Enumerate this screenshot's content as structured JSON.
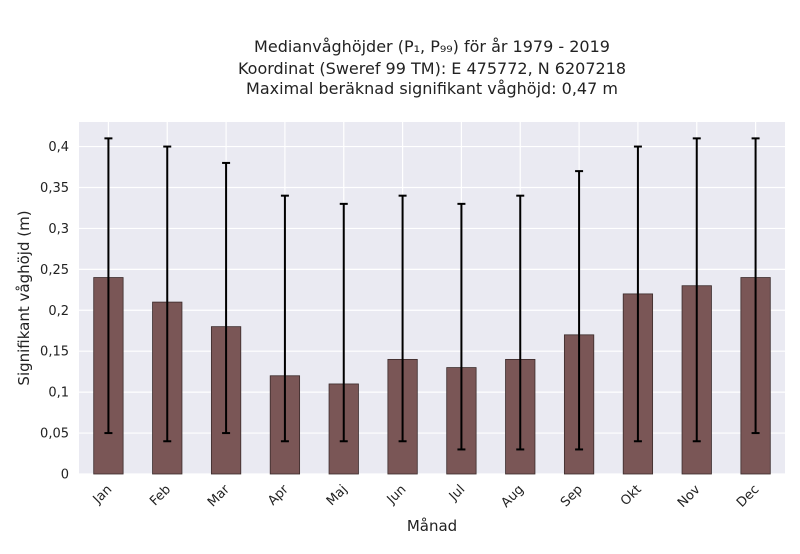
{
  "chart_data": {
    "type": "bar",
    "title_lines": [
      "Medianvåghöjder (P₁, P₉₉) för år 1979 - 2019",
      "Koordinat (Sweref 99 TM): E 475772, N 6207218",
      "Maximal beräknad signifikant våghöjd: 0,47 m"
    ],
    "xlabel": "Månad",
    "ylabel": "Signifikant våghöjd (m)",
    "categories": [
      "Jan",
      "Feb",
      "Mar",
      "Apr",
      "Maj",
      "Jun",
      "Jul",
      "Aug",
      "Sep",
      "Okt",
      "Nov",
      "Dec"
    ],
    "values": [
      0.24,
      0.21,
      0.18,
      0.12,
      0.11,
      0.14,
      0.13,
      0.14,
      0.17,
      0.22,
      0.23,
      0.24
    ],
    "error_low": [
      0.05,
      0.04,
      0.05,
      0.04,
      0.04,
      0.04,
      0.03,
      0.03,
      0.03,
      0.04,
      0.04,
      0.05
    ],
    "error_high": [
      0.41,
      0.4,
      0.38,
      0.34,
      0.33,
      0.34,
      0.33,
      0.34,
      0.37,
      0.4,
      0.41,
      0.41
    ],
    "ylim": [
      0,
      0.43
    ],
    "yticks": [
      0,
      0.05,
      0.1,
      0.15,
      0.2,
      0.25,
      0.3,
      0.35,
      0.4
    ],
    "ytick_labels": [
      "0",
      "0,05",
      "0,1",
      "0,15",
      "0,2",
      "0,25",
      "0,3",
      "0,35",
      "0,4"
    ],
    "grid": true,
    "colors": {
      "bar": "#7a5656",
      "bar_edge": "#3a2a2a",
      "error": "#000000",
      "plot_bg": "#eaeaf2",
      "grid": "#ffffff"
    }
  }
}
